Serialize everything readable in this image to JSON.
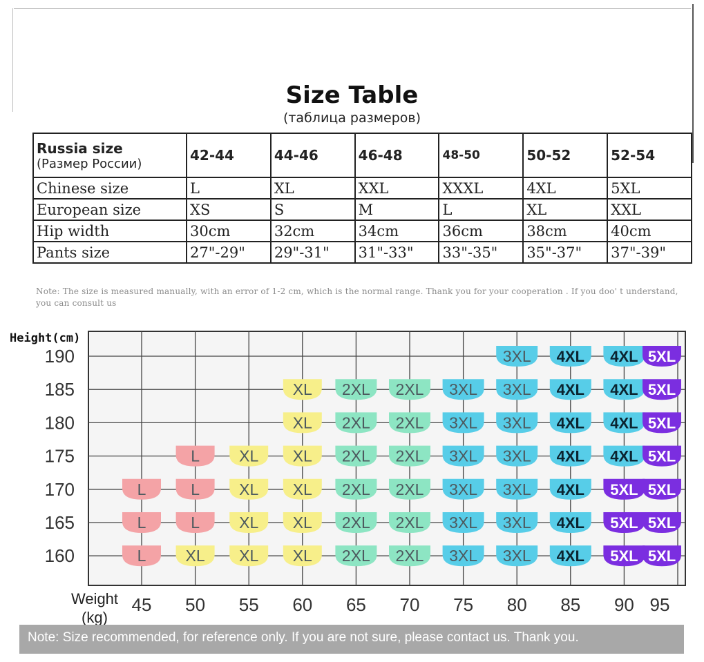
{
  "title": "Size Table",
  "subtitle": "(таблица размеров)",
  "size_table": {
    "header_label": "Russia size",
    "header_sublabel": "(Размер России)",
    "columns": [
      "42-44",
      "44-46",
      "46-48",
      "48-50",
      "50-52",
      "52-54"
    ],
    "rows": [
      {
        "label": "Chinese size",
        "cells": [
          "L",
          "XL",
          "XXL",
          "XXXL",
          "4XL",
          "5XL"
        ]
      },
      {
        "label": "European size",
        "cells": [
          "XS",
          "S",
          "M",
          "L",
          "XL",
          "XXL"
        ]
      },
      {
        "label": "Hip width",
        "cells": [
          "30cm",
          "32cm",
          "34cm",
          "36cm",
          "38cm",
          "40cm"
        ]
      },
      {
        "label": "Pants size",
        "cells": [
          "27\"-29\"",
          "29\"-31\"",
          "31\"-33\"",
          "33\"-35\"",
          "35\"-37\"",
          "37\"-39\""
        ]
      }
    ]
  },
  "note_top": "Note: The size is measured manually, with an error of 1-2 cm, which is the normal range. Thank you for your cooperation . If you doo' t understand, you can consult us",
  "chart_data": {
    "type": "table",
    "ylabel": "Height(cm)",
    "xlabel": "Weight (kg)",
    "x": [
      45,
      50,
      55,
      60,
      65,
      70,
      75,
      80,
      85,
      90,
      95
    ],
    "y": [
      190,
      185,
      180,
      175,
      170,
      165,
      160
    ],
    "cells": [
      {
        "weight": 80,
        "height": 190,
        "size": "3XL"
      },
      {
        "weight": 85,
        "height": 190,
        "size": "4XL"
      },
      {
        "weight": 90,
        "height": 190,
        "size": "4XL"
      },
      {
        "weight": 95,
        "height": 190,
        "size": "5XL"
      },
      {
        "weight": 60,
        "height": 185,
        "size": "XL"
      },
      {
        "weight": 65,
        "height": 185,
        "size": "2XL"
      },
      {
        "weight": 70,
        "height": 185,
        "size": "2XL"
      },
      {
        "weight": 75,
        "height": 185,
        "size": "3XL"
      },
      {
        "weight": 80,
        "height": 185,
        "size": "3XL"
      },
      {
        "weight": 85,
        "height": 185,
        "size": "4XL"
      },
      {
        "weight": 90,
        "height": 185,
        "size": "4XL"
      },
      {
        "weight": 95,
        "height": 185,
        "size": "5XL"
      },
      {
        "weight": 60,
        "height": 180,
        "size": "XL"
      },
      {
        "weight": 65,
        "height": 180,
        "size": "2XL"
      },
      {
        "weight": 70,
        "height": 180,
        "size": "2XL"
      },
      {
        "weight": 75,
        "height": 180,
        "size": "3XL"
      },
      {
        "weight": 80,
        "height": 180,
        "size": "3XL"
      },
      {
        "weight": 85,
        "height": 180,
        "size": "4XL"
      },
      {
        "weight": 90,
        "height": 180,
        "size": "4XL"
      },
      {
        "weight": 95,
        "height": 180,
        "size": "5XL"
      },
      {
        "weight": 50,
        "height": 175,
        "size": "L"
      },
      {
        "weight": 55,
        "height": 175,
        "size": "XL"
      },
      {
        "weight": 60,
        "height": 175,
        "size": "XL"
      },
      {
        "weight": 65,
        "height": 175,
        "size": "2XL"
      },
      {
        "weight": 70,
        "height": 175,
        "size": "2XL"
      },
      {
        "weight": 75,
        "height": 175,
        "size": "3XL"
      },
      {
        "weight": 80,
        "height": 175,
        "size": "3XL"
      },
      {
        "weight": 85,
        "height": 175,
        "size": "4XL"
      },
      {
        "weight": 90,
        "height": 175,
        "size": "4XL"
      },
      {
        "weight": 95,
        "height": 175,
        "size": "5XL"
      },
      {
        "weight": 45,
        "height": 170,
        "size": "L"
      },
      {
        "weight": 50,
        "height": 170,
        "size": "L"
      },
      {
        "weight": 55,
        "height": 170,
        "size": "XL"
      },
      {
        "weight": 60,
        "height": 170,
        "size": "XL"
      },
      {
        "weight": 65,
        "height": 170,
        "size": "2XL"
      },
      {
        "weight": 70,
        "height": 170,
        "size": "2XL"
      },
      {
        "weight": 75,
        "height": 170,
        "size": "3XL"
      },
      {
        "weight": 80,
        "height": 170,
        "size": "3XL"
      },
      {
        "weight": 85,
        "height": 170,
        "size": "4XL"
      },
      {
        "weight": 90,
        "height": 170,
        "size": "5XL"
      },
      {
        "weight": 95,
        "height": 170,
        "size": "5XL"
      },
      {
        "weight": 45,
        "height": 165,
        "size": "L"
      },
      {
        "weight": 50,
        "height": 165,
        "size": "L"
      },
      {
        "weight": 55,
        "height": 165,
        "size": "XL"
      },
      {
        "weight": 60,
        "height": 165,
        "size": "XL"
      },
      {
        "weight": 65,
        "height": 165,
        "size": "2XL"
      },
      {
        "weight": 70,
        "height": 165,
        "size": "2XL"
      },
      {
        "weight": 75,
        "height": 165,
        "size": "3XL"
      },
      {
        "weight": 80,
        "height": 165,
        "size": "3XL"
      },
      {
        "weight": 85,
        "height": 165,
        "size": "4XL"
      },
      {
        "weight": 90,
        "height": 165,
        "size": "5XL"
      },
      {
        "weight": 95,
        "height": 165,
        "size": "5XL"
      },
      {
        "weight": 45,
        "height": 160,
        "size": "L"
      },
      {
        "weight": 50,
        "height": 160,
        "size": "XL"
      },
      {
        "weight": 55,
        "height": 160,
        "size": "XL"
      },
      {
        "weight": 60,
        "height": 160,
        "size": "XL"
      },
      {
        "weight": 65,
        "height": 160,
        "size": "2XL"
      },
      {
        "weight": 70,
        "height": 160,
        "size": "2XL"
      },
      {
        "weight": 75,
        "height": 160,
        "size": "3XL"
      },
      {
        "weight": 80,
        "height": 160,
        "size": "3XL"
      },
      {
        "weight": 85,
        "height": 160,
        "size": "4XL"
      },
      {
        "weight": 90,
        "height": 160,
        "size": "5XL"
      },
      {
        "weight": 95,
        "height": 160,
        "size": "5XL"
      }
    ],
    "size_colors": {
      "L": "#f4a3a6",
      "XL": "#f7ef8a",
      "2XL": "#8de5c3",
      "3XL": "#57cde8",
      "4XL": "#57cde8",
      "5XL": "#7b2ee0"
    },
    "grid": true
  },
  "bottom_note": "Note: Size recommended, for reference only. If you are not sure, please contact us. Thank you."
}
